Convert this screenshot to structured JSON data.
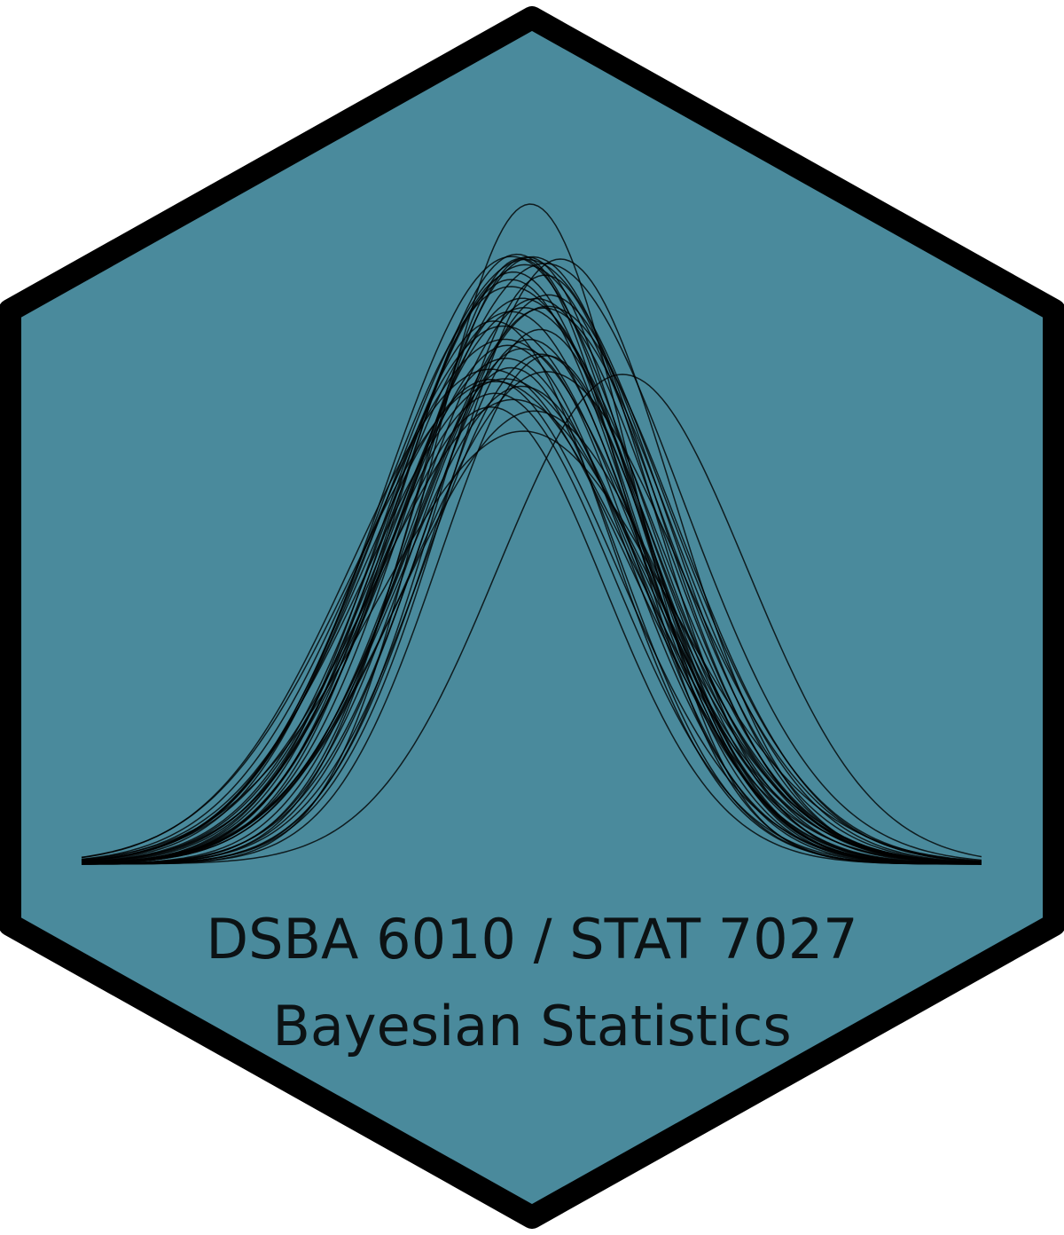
{
  "logo": {
    "course_codes": "DSBA 6010 / STAT 7027",
    "course_name": "Bayesian Statistics",
    "fill_color": "#4a8a9c",
    "border_color": "#000000",
    "curve_color": "#000000",
    "graphic": "overlaid normal density curves (posterior draws)"
  }
}
